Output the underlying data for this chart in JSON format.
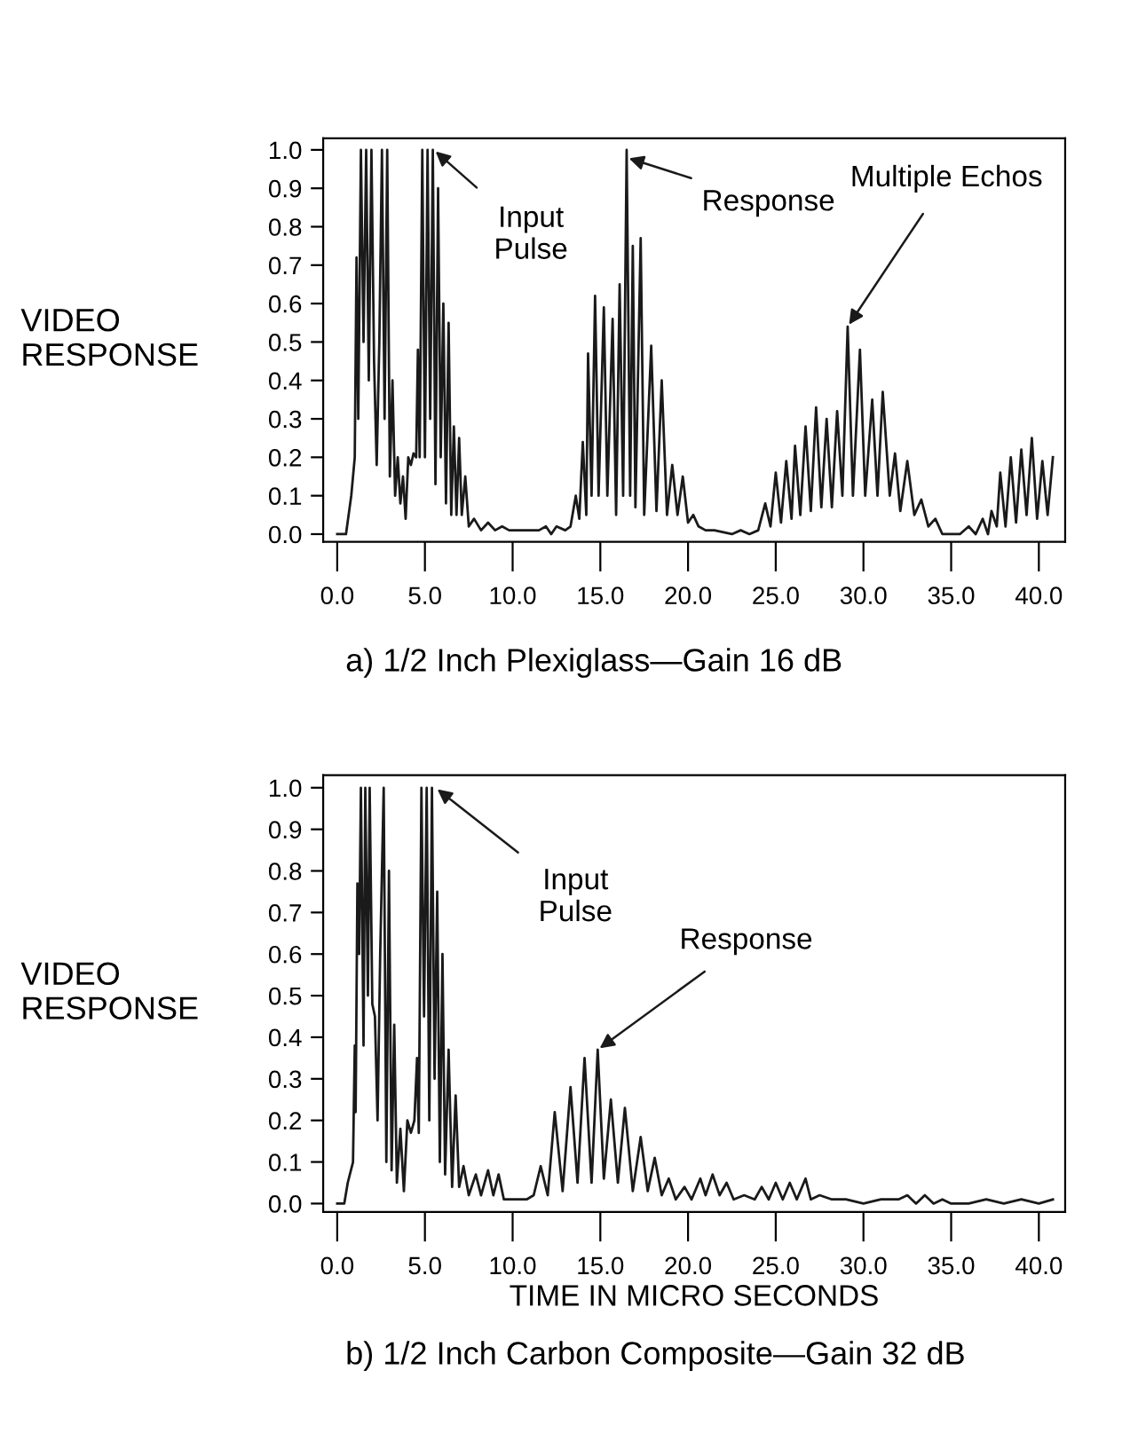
{
  "chart_data": [
    {
      "type": "line",
      "title": "a) 1/2 Inch Plexiglass—Gain 16 dB",
      "ylabel": "VIDEO\nRESPONSE",
      "annotations": [
        {
          "text": "Input\nPulse",
          "x": 5.5,
          "y": 1.0
        },
        {
          "text": "Response",
          "x": 16.5,
          "y": 0.98
        },
        {
          "text": "Multiple Echos",
          "x": 29.1,
          "y": 0.54
        }
      ],
      "xlim": [
        -0.8,
        41.5
      ],
      "ylim": [
        -0.02,
        1.03
      ],
      "xticks": [
        {
          "value": 0,
          "label": "0.0"
        },
        {
          "value": 5,
          "label": "5.0"
        },
        {
          "value": 10,
          "label": "10.0"
        },
        {
          "value": 15,
          "label": "15.0"
        },
        {
          "value": 20,
          "label": "20.0"
        },
        {
          "value": 25,
          "label": "25.0"
        },
        {
          "value": 30,
          "label": "30.0"
        },
        {
          "value": 35,
          "label": "35.0"
        },
        {
          "value": 40,
          "label": "40.0"
        }
      ],
      "yticks": [
        {
          "value": 0,
          "label": "0.0"
        },
        {
          "value": 0.1,
          "label": "0.1"
        },
        {
          "value": 0.2,
          "label": "0.2"
        },
        {
          "value": 0.3,
          "label": "0.3"
        },
        {
          "value": 0.4,
          "label": "0.4"
        },
        {
          "value": 0.5,
          "label": "0.5"
        },
        {
          "value": 0.6,
          "label": "0.6"
        },
        {
          "value": 0.7,
          "label": "0.7"
        },
        {
          "value": 0.8,
          "label": "0.8"
        },
        {
          "value": 0.9,
          "label": "0.9"
        },
        {
          "value": 1,
          "label": "1.0"
        }
      ],
      "grid": false,
      "marker": "none",
      "line_style": "solid",
      "series": [
        {
          "color": "#1a1a1a",
          "x": [
            0,
            0.5,
            0.8,
            1.0,
            1.1,
            1.2,
            1.35,
            1.5,
            1.65,
            1.8,
            1.95,
            2.1,
            2.25,
            2.4,
            2.55,
            2.7,
            2.85,
            3.0,
            3.15,
            3.3,
            3.45,
            3.6,
            3.75,
            3.9,
            4.05,
            4.2,
            4.35,
            4.5,
            4.6,
            4.7,
            4.85,
            5.0,
            5.15,
            5.3,
            5.45,
            5.6,
            5.75,
            5.9,
            6.05,
            6.2,
            6.35,
            6.5,
            6.65,
            6.8,
            6.95,
            7.1,
            7.3,
            7.5,
            7.8,
            8.2,
            8.6,
            9.0,
            9.4,
            9.8,
            10.5,
            11.5,
            11.9,
            12.2,
            12.5,
            13.0,
            13.3,
            13.6,
            13.8,
            14.0,
            14.2,
            14.3,
            14.5,
            14.7,
            14.9,
            15.2,
            15.4,
            15.7,
            15.9,
            16.1,
            16.3,
            16.5,
            16.7,
            16.85,
            17.0,
            17.3,
            17.5,
            17.9,
            18.2,
            18.5,
            18.8,
            19.1,
            19.4,
            19.7,
            20.0,
            20.3,
            20.6,
            21.0,
            21.5,
            22.5,
            23.0,
            23.5,
            24.0,
            24.4,
            24.7,
            25.0,
            25.3,
            25.6,
            25.9,
            26.1,
            26.4,
            26.7,
            27.0,
            27.3,
            27.6,
            27.9,
            28.2,
            28.5,
            28.8,
            29.1,
            29.4,
            29.8,
            30.1,
            30.5,
            30.8,
            31.1,
            31.5,
            31.8,
            32.1,
            32.5,
            32.9,
            33.3,
            33.7,
            34.1,
            34.5,
            35.5,
            36.0,
            36.4,
            36.8,
            37.1,
            37.3,
            37.6,
            37.8,
            38.1,
            38.4,
            38.7,
            39.0,
            39.3,
            39.6,
            39.9,
            40.2,
            40.5,
            40.8
          ],
          "values": [
            0,
            0,
            0.1,
            0.2,
            0.72,
            0.3,
            1.0,
            0.5,
            1.0,
            0.4,
            1.0,
            0.45,
            0.18,
            0.5,
            1.0,
            0.3,
            1.0,
            0.15,
            0.4,
            0.1,
            0.2,
            0.08,
            0.15,
            0.04,
            0.2,
            0.18,
            0.21,
            0.2,
            0.48,
            0.2,
            1.0,
            0.2,
            1.0,
            0.3,
            1.0,
            0.13,
            0.9,
            0.2,
            0.6,
            0.08,
            0.55,
            0.05,
            0.28,
            0.05,
            0.25,
            0.05,
            0.15,
            0.02,
            0.04,
            0.01,
            0.03,
            0.01,
            0.02,
            0.01,
            0.01,
            0.01,
            0.02,
            0.0,
            0.02,
            0.01,
            0.02,
            0.1,
            0.04,
            0.24,
            0.05,
            0.47,
            0.1,
            0.62,
            0.1,
            0.59,
            0.1,
            0.56,
            0.05,
            0.65,
            0.1,
            1.0,
            0.1,
            0.75,
            0.07,
            0.77,
            0.05,
            0.49,
            0.06,
            0.4,
            0.05,
            0.18,
            0.05,
            0.15,
            0.03,
            0.05,
            0.02,
            0.01,
            0.01,
            0.0,
            0.01,
            0.0,
            0.01,
            0.08,
            0.02,
            0.16,
            0.03,
            0.19,
            0.04,
            0.23,
            0.05,
            0.28,
            0.06,
            0.33,
            0.07,
            0.3,
            0.07,
            0.32,
            0.1,
            0.54,
            0.1,
            0.48,
            0.1,
            0.35,
            0.1,
            0.37,
            0.1,
            0.21,
            0.06,
            0.19,
            0.05,
            0.09,
            0.02,
            0.04,
            0.0,
            0.0,
            0.02,
            0.0,
            0.04,
            0.0,
            0.06,
            0.02,
            0.16,
            0.02,
            0.2,
            0.03,
            0.22,
            0.05,
            0.25,
            0.04,
            0.19,
            0.05,
            0.2
          ]
        }
      ]
    },
    {
      "type": "line",
      "title": "b) 1/2 Inch Carbon Composite—Gain 32 dB",
      "xlabel": "TIME IN MICRO SECONDS",
      "ylabel": "VIDEO\nRESPONSE",
      "annotations": [
        {
          "text": "Input\nPulse",
          "x": 5.6,
          "y": 1.0
        },
        {
          "text": "Response",
          "x": 14.85,
          "y": 0.37
        }
      ],
      "xlim": [
        -0.8,
        41.5
      ],
      "ylim": [
        -0.02,
        1.03
      ],
      "xticks": [
        {
          "value": 0,
          "label": "0.0"
        },
        {
          "value": 5,
          "label": "5.0"
        },
        {
          "value": 10,
          "label": "10.0"
        },
        {
          "value": 15,
          "label": "15.0"
        },
        {
          "value": 20,
          "label": "20.0"
        },
        {
          "value": 25,
          "label": "25.0"
        },
        {
          "value": 30,
          "label": "30.0"
        },
        {
          "value": 35,
          "label": "35.0"
        },
        {
          "value": 40,
          "label": "40.0"
        }
      ],
      "yticks": [
        {
          "value": 0,
          "label": "0.0"
        },
        {
          "value": 0.1,
          "label": "0.1"
        },
        {
          "value": 0.2,
          "label": "0.2"
        },
        {
          "value": 0.3,
          "label": "0.3"
        },
        {
          "value": 0.4,
          "label": "0.4"
        },
        {
          "value": 0.5,
          "label": "0.5"
        },
        {
          "value": 0.6,
          "label": "0.6"
        },
        {
          "value": 0.7,
          "label": "0.7"
        },
        {
          "value": 0.8,
          "label": "0.8"
        },
        {
          "value": 0.9,
          "label": "0.9"
        },
        {
          "value": 1,
          "label": "1.0"
        }
      ],
      "grid": false,
      "marker": "none",
      "line_style": "solid",
      "series": [
        {
          "color": "#1a1a1a",
          "x": [
            0,
            0.4,
            0.6,
            0.9,
            1.0,
            1.05,
            1.15,
            1.25,
            1.35,
            1.5,
            1.6,
            1.75,
            1.85,
            2.0,
            2.15,
            2.3,
            2.45,
            2.65,
            2.8,
            2.95,
            3.1,
            3.25,
            3.4,
            3.6,
            3.8,
            4.0,
            4.2,
            4.4,
            4.55,
            4.65,
            4.8,
            4.95,
            5.1,
            5.25,
            5.4,
            5.55,
            5.7,
            5.85,
            6.0,
            6.15,
            6.35,
            6.55,
            6.75,
            6.95,
            7.2,
            7.5,
            7.9,
            8.2,
            8.6,
            8.9,
            9.2,
            9.5,
            10.0,
            10.8,
            11.2,
            11.6,
            12.0,
            12.4,
            12.85,
            13.3,
            13.7,
            14.1,
            14.5,
            14.85,
            15.2,
            15.6,
            16.0,
            16.4,
            16.85,
            17.3,
            17.7,
            18.1,
            18.5,
            18.9,
            19.3,
            19.8,
            20.2,
            20.7,
            21.0,
            21.4,
            21.8,
            22.2,
            22.6,
            23.2,
            23.8,
            24.2,
            24.6,
            25.0,
            25.4,
            25.8,
            26.2,
            26.7,
            27.0,
            27.5,
            28.2,
            29.0,
            30.0,
            31.0,
            32.0,
            32.5,
            33.0,
            33.5,
            34.0,
            34.5,
            35.0,
            36.0,
            37.0,
            38.0,
            39.0,
            40.0,
            40.8
          ],
          "values": [
            0,
            0,
            0.05,
            0.1,
            0.38,
            0.22,
            0.77,
            0.6,
            1.0,
            0.38,
            1.0,
            0.5,
            1.0,
            0.48,
            0.45,
            0.2,
            0.6,
            1.0,
            0.1,
            0.8,
            0.08,
            0.43,
            0.05,
            0.18,
            0.03,
            0.2,
            0.17,
            0.2,
            0.35,
            0.17,
            1.0,
            0.45,
            1.0,
            0.2,
            1.0,
            0.3,
            0.75,
            0.1,
            0.6,
            0.07,
            0.37,
            0.04,
            0.26,
            0.04,
            0.09,
            0.02,
            0.07,
            0.02,
            0.08,
            0.02,
            0.07,
            0.01,
            0.01,
            0.01,
            0.02,
            0.09,
            0.02,
            0.22,
            0.03,
            0.28,
            0.05,
            0.35,
            0.05,
            0.37,
            0.06,
            0.25,
            0.05,
            0.23,
            0.03,
            0.16,
            0.03,
            0.11,
            0.02,
            0.06,
            0.01,
            0.04,
            0.01,
            0.06,
            0.02,
            0.07,
            0.02,
            0.05,
            0.01,
            0.02,
            0.01,
            0.04,
            0.01,
            0.05,
            0.01,
            0.05,
            0.01,
            0.06,
            0.01,
            0.02,
            0.01,
            0.01,
            0.0,
            0.01,
            0.01,
            0.02,
            0.0,
            0.02,
            0.0,
            0.01,
            0.0,
            0.0,
            0.01,
            0.0,
            0.01,
            0.0,
            0.01
          ]
        }
      ]
    }
  ]
}
